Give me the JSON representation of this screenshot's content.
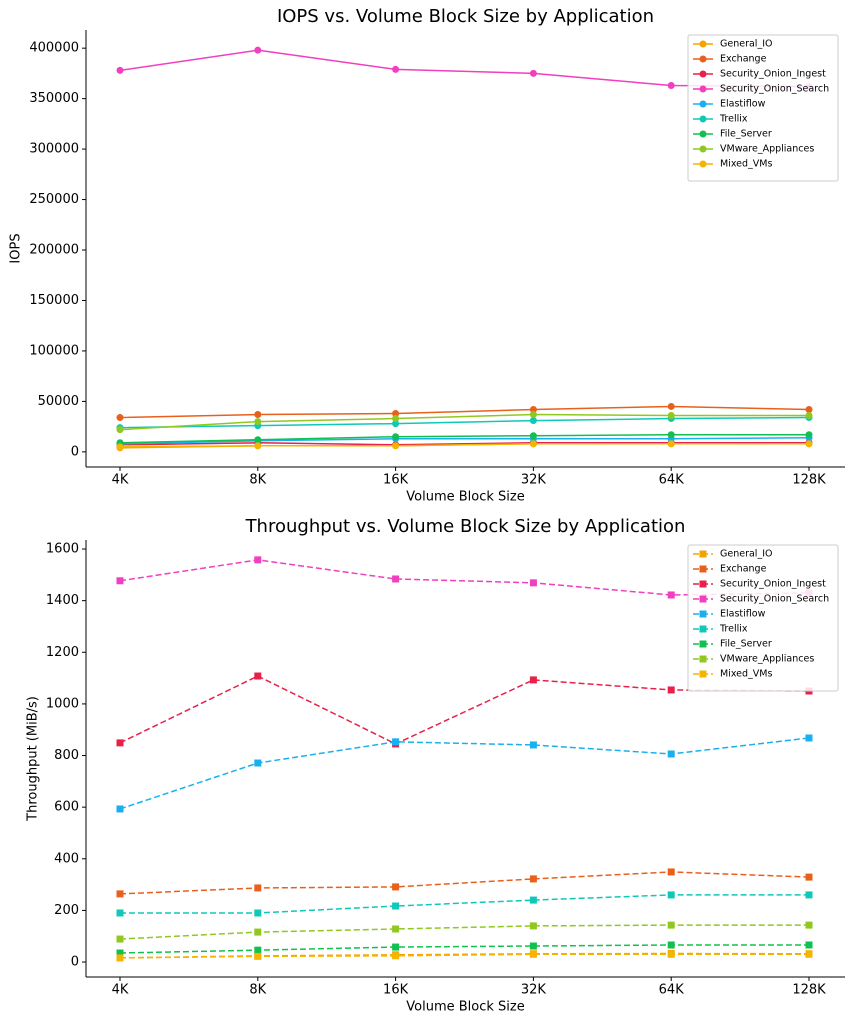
{
  "chart_data": [
    {
      "type": "line",
      "title": "IOPS vs. Volume Block Size by Application",
      "xlabel": "Volume Block Size",
      "ylabel": "IOPS",
      "categories": [
        "4K",
        "8K",
        "16K",
        "32K",
        "64K",
        "128K"
      ],
      "marker": "circle",
      "linestyle": "solid",
      "legend": "upper right",
      "ylim": [
        -15000,
        418000
      ],
      "yticks": [
        0,
        50000,
        100000,
        150000,
        200000,
        250000,
        300000,
        350000,
        400000
      ],
      "series": [
        {
          "name": "General_IO",
          "color": "#f5a300",
          "values": [
            4000,
            6000,
            6000,
            8000,
            8000,
            8000
          ]
        },
        {
          "name": "Exchange",
          "color": "#e8601c",
          "values": [
            34000,
            37000,
            38000,
            42000,
            45000,
            42000
          ]
        },
        {
          "name": "Security_Onion_Ingest",
          "color": "#e8204a",
          "values": [
            7000,
            9000,
            7000,
            9000,
            9000,
            9000
          ]
        },
        {
          "name": "Security_Onion_Search",
          "color": "#f03fbf",
          "values": [
            378000,
            398000,
            379000,
            375000,
            363000,
            362000
          ]
        },
        {
          "name": "Elastiflow",
          "color": "#1ab0f0",
          "values": [
            8000,
            11000,
            13000,
            13000,
            13000,
            14000
          ]
        },
        {
          "name": "Trellix",
          "color": "#10c8b8",
          "values": [
            24000,
            26000,
            28000,
            31000,
            33000,
            34000
          ]
        },
        {
          "name": "File_Server",
          "color": "#10c050",
          "values": [
            9000,
            12000,
            15000,
            16000,
            17000,
            17000
          ]
        },
        {
          "name": "VMware_Appliances",
          "color": "#90c820",
          "values": [
            22000,
            30000,
            33000,
            37000,
            36000,
            36000
          ]
        },
        {
          "name": "Mixed_VMs",
          "color": "#f5b400",
          "values": [
            5000,
            6000,
            6000,
            8000,
            8000,
            8000
          ]
        }
      ]
    },
    {
      "type": "line",
      "title": "Throughput vs. Volume Block Size by Application",
      "xlabel": "Volume Block Size",
      "ylabel": "Throughput (MiB/s)",
      "categories": [
        "4K",
        "8K",
        "16K",
        "32K",
        "64K",
        "128K"
      ],
      "marker": "square",
      "linestyle": "dashed",
      "legend": "upper right",
      "ylim": [
        -58,
        1635
      ],
      "yticks": [
        0,
        200,
        400,
        600,
        800,
        1000,
        1200,
        1400,
        1600
      ],
      "series": [
        {
          "name": "General_IO",
          "color": "#f5a300",
          "values": [
            16,
            24,
            28,
            32,
            33,
            32
          ]
        },
        {
          "name": "Exchange",
          "color": "#e8601c",
          "values": [
            264,
            287,
            291,
            322,
            349,
            329
          ]
        },
        {
          "name": "Security_Onion_Ingest",
          "color": "#e8204a",
          "values": [
            849,
            1108,
            845,
            1093,
            1054,
            1050
          ]
        },
        {
          "name": "Security_Onion_Search",
          "color": "#f03fbf",
          "values": [
            1477,
            1558,
            1484,
            1469,
            1422,
            1430
          ]
        },
        {
          "name": "Elastiflow",
          "color": "#1ab0f0",
          "values": [
            593,
            771,
            853,
            841,
            806,
            868
          ]
        },
        {
          "name": "Trellix",
          "color": "#10c8b8",
          "values": [
            190,
            190,
            217,
            240,
            260,
            260
          ]
        },
        {
          "name": "File_Server",
          "color": "#10c050",
          "values": [
            35,
            46,
            58,
            62,
            66,
            66
          ]
        },
        {
          "name": "VMware_Appliances",
          "color": "#90c820",
          "values": [
            89,
            116,
            128,
            140,
            143,
            143
          ]
        },
        {
          "name": "Mixed_VMs",
          "color": "#f5b400",
          "values": [
            16,
            22,
            24,
            30,
            30,
            30
          ]
        }
      ]
    }
  ]
}
